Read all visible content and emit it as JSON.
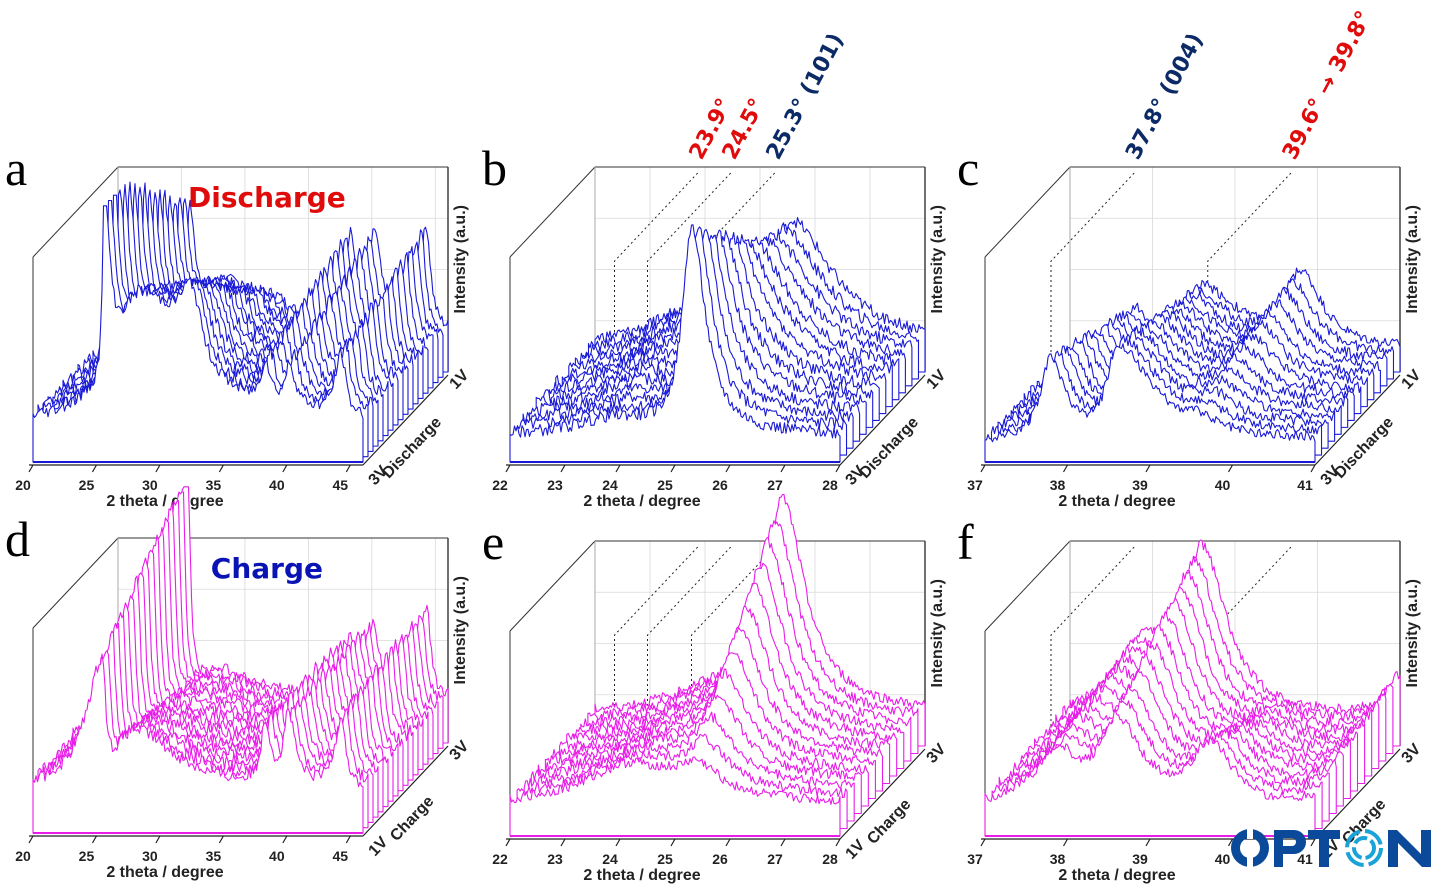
{
  "figure": {
    "colors": {
      "discharge": "#1a1ad6",
      "charge": "#e81ee8",
      "annot_red": "#e00b0b",
      "annot_navy": "#0b2a66",
      "grid": "#d9d9d9",
      "frame": "#333333"
    },
    "logo_text": "OPTON",
    "logo_colors": {
      "primary": "#0b4a9a",
      "accent": "#1aa3d6"
    }
  },
  "chart_data": [
    {
      "id": "a",
      "type": "waterfall",
      "letter": "a",
      "mode": "Discharge",
      "title": "Discharge",
      "title_color": "#e00b0b",
      "xlabel": "2 theta / degree",
      "ylabel": "Intensity (a.u.)",
      "zlabel": "Discharge",
      "z_start": "3V",
      "z_end": "1V",
      "xlim": [
        20,
        46
      ],
      "xticks": [
        20,
        25,
        30,
        35,
        40,
        45
      ],
      "n_series": 18,
      "color": "#1a1ad6",
      "grid": true,
      "peaks": [
        {
          "center": 25.6,
          "width_left": 0.15,
          "width_right": 0.5,
          "height": [
            0.95,
            0.55
          ],
          "shift": 0
        },
        {
          "center": 28.5,
          "width_left": 2.5,
          "width_right": 4.5,
          "height": [
            0.6,
            0.25
          ],
          "shift": 0
        },
        {
          "center": 32.5,
          "width_left": 1.2,
          "width_right": 0.9,
          "height": [
            0.35,
            0.05
          ],
          "shift": 0
        },
        {
          "center": 38.3,
          "width_left": 0.4,
          "width_right": 0.5,
          "height": [
            0.2,
            0.45
          ],
          "shift": 0
        },
        {
          "center": 40.2,
          "width_left": 0.4,
          "width_right": 0.6,
          "height": [
            0.2,
            0.45
          ],
          "shift": 0
        },
        {
          "center": 44.3,
          "width_left": 0.6,
          "width_right": 0.4,
          "height": [
            0.3,
            0.5
          ],
          "shift": 0
        }
      ],
      "baseline": 0.18,
      "noise": 0.03,
      "annotations": []
    },
    {
      "id": "b",
      "type": "waterfall",
      "letter": "b",
      "mode": "Discharge",
      "xlabel": "2 theta / degree",
      "ylabel": "Intensity (a.u.)",
      "zlabel": "Discharge",
      "z_start": "3V",
      "z_end": "1V",
      "xlim": [
        22,
        28
      ],
      "xticks": [
        22,
        23,
        24,
        25,
        26,
        27,
        28
      ],
      "n_series": 14,
      "color": "#1a1ad6",
      "grid": true,
      "peaks": [
        {
          "center": 25.3,
          "width_left": 0.2,
          "width_right": 0.3,
          "height": [
            1.0,
            0.05
          ],
          "shift": 0
        },
        {
          "center": 25.6,
          "width_left": 0.4,
          "width_right": 0.9,
          "height": [
            0.0,
            0.55
          ],
          "shift": 0
        },
        {
          "center": 23.9,
          "width_left": 0.8,
          "width_right": 0.8,
          "height": [
            0.08,
            0.2
          ],
          "shift": 0
        }
      ],
      "baseline": 0.13,
      "noise": 0.03,
      "reference_lines": [
        23.9,
        24.5,
        25.3
      ],
      "annotations": [
        {
          "text": "23.9°",
          "x": 23.9,
          "color": "#e00b0b"
        },
        {
          "text": "24.5°",
          "x": 24.5,
          "color": "#e00b0b"
        },
        {
          "text": "25.3° (101)",
          "x": 25.3,
          "color": "#0b2a66"
        }
      ]
    },
    {
      "id": "c",
      "type": "waterfall",
      "letter": "c",
      "mode": "Discharge",
      "xlabel": "2 theta / degree",
      "ylabel": "Intensity (a.u.)",
      "zlabel": "Discharge",
      "z_start": "3V",
      "z_end": "1V",
      "xlim": [
        37,
        41
      ],
      "xticks": [
        37,
        38,
        39,
        40,
        41
      ],
      "n_series": 14,
      "color": "#1a1ad6",
      "grid": true,
      "peaks": [
        {
          "center": 37.8,
          "width_left": 0.15,
          "width_right": 0.2,
          "height": [
            0.4,
            0.2
          ],
          "shift": 0
        },
        {
          "center": 38.6,
          "width_left": 0.15,
          "width_right": 0.5,
          "height": [
            0.45,
            0.3
          ],
          "shift": 0
        },
        {
          "center": 39.6,
          "width_left": 0.25,
          "width_right": 0.3,
          "height": [
            0.05,
            0.35
          ],
          "shift": 0.2
        }
      ],
      "baseline": 0.1,
      "noise": 0.025,
      "reference_lines": [
        37.8,
        39.7
      ],
      "annotations": [
        {
          "text": "37.8° (004)",
          "x": 37.8,
          "color": "#0b2a66"
        },
        {
          "text": "39.6° → 39.8°",
          "x": 39.7,
          "color": "#e00b0b"
        }
      ]
    },
    {
      "id": "d",
      "type": "waterfall",
      "letter": "d",
      "mode": "Charge",
      "title": "Charge",
      "title_color": "#0a14b4",
      "xlabel": "2 theta / degree",
      "ylabel": "Intensity (a.u.)",
      "zlabel": "Charge",
      "z_start": "1V",
      "z_end": "3V",
      "xlim": [
        20,
        46
      ],
      "xticks": [
        20,
        25,
        30,
        35,
        40,
        45
      ],
      "n_series": 18,
      "color": "#e81ee8",
      "grid": true,
      "peaks": [
        {
          "center": 25.5,
          "width_left": 1.6,
          "width_right": 0.25,
          "height": [
            0.55,
            1.05
          ],
          "shift": 0
        },
        {
          "center": 28.0,
          "width_left": 2.0,
          "width_right": 4.0,
          "height": [
            0.3,
            0.15
          ],
          "shift": 0
        },
        {
          "center": 38.3,
          "width_left": 0.4,
          "width_right": 0.5,
          "height": [
            0.3,
            0.3
          ],
          "shift": 0
        },
        {
          "center": 40.1,
          "width_left": 0.4,
          "width_right": 0.6,
          "height": [
            0.35,
            0.35
          ],
          "shift": 0
        },
        {
          "center": 44.3,
          "width_left": 0.6,
          "width_right": 0.4,
          "height": [
            0.35,
            0.45
          ],
          "shift": 0
        }
      ],
      "baseline": 0.2,
      "noise": 0.03,
      "annotations": []
    },
    {
      "id": "e",
      "type": "waterfall",
      "letter": "e",
      "mode": "Charge",
      "xlabel": "2 theta / degree",
      "ylabel": "Intensity (a.u.)",
      "zlabel": "Charge",
      "z_start": "1V",
      "z_end": "3V",
      "xlim": [
        22,
        28
      ],
      "xticks": [
        22,
        23,
        24,
        25,
        26,
        27,
        28
      ],
      "n_series": 13,
      "color": "#e81ee8",
      "grid": true,
      "peaks": [
        {
          "center": 24.2,
          "width_left": 1.0,
          "width_right": 1.2,
          "height": [
            0.2,
            0.12
          ],
          "shift": 0
        },
        {
          "center": 25.4,
          "width_left": 0.35,
          "width_right": 0.5,
          "height": [
            0.12,
            1.0
          ],
          "shift": 0
        }
      ],
      "baseline": 0.15,
      "noise": 0.025,
      "reference_lines": [
        23.9,
        24.5,
        25.3
      ],
      "annotations": []
    },
    {
      "id": "f",
      "type": "waterfall",
      "letter": "f",
      "mode": "Charge",
      "xlabel": "2 theta / degree",
      "ylabel": "Intensity (a.u.)",
      "zlabel": "Charge",
      "z_start": "1V",
      "z_end": "3V",
      "xlim": [
        37,
        41
      ],
      "xticks": [
        37,
        38,
        39,
        40,
        41
      ],
      "n_series": 13,
      "color": "#e81ee8",
      "grid": true,
      "peaks": [
        {
          "center": 37.9,
          "width_left": 0.4,
          "width_right": 0.3,
          "height": [
            0.25,
            0.35
          ],
          "shift": 0
        },
        {
          "center": 38.6,
          "width_left": 0.25,
          "width_right": 0.35,
          "height": [
            0.4,
            0.8
          ],
          "shift": 0
        },
        {
          "center": 39.75,
          "width_left": 0.3,
          "width_right": 0.3,
          "height": [
            0.3,
            0.0
          ],
          "shift": 0
        },
        {
          "center": 41.0,
          "width_left": 0.2,
          "width_right": 0.1,
          "height": [
            0.05,
            0.2
          ],
          "shift": 0
        }
      ],
      "baseline": 0.13,
      "noise": 0.025,
      "reference_lines": [
        37.8,
        39.7
      ],
      "annotations": []
    }
  ]
}
